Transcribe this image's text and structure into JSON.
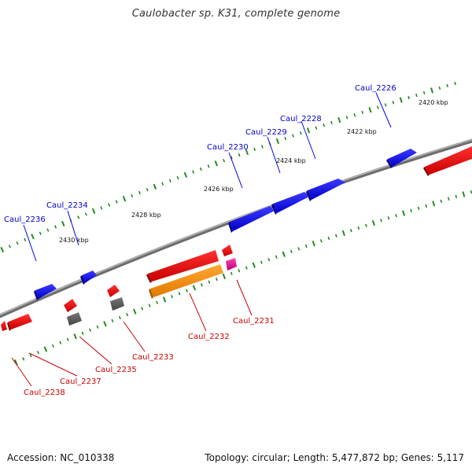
{
  "title": "Caulobacter sp. K31, complete genome",
  "footer": {
    "accession": "Accession: NC_010338",
    "summary": "Topology: circular; Length: 5,477,872 bp; Genes: 5,117"
  },
  "colors": {
    "forward_gene": "#0000ee",
    "reverse_gene": "#ee0000",
    "orange_gene": "#ff8c00",
    "grey_gene": "#555555",
    "pink_gene": "#dd1188",
    "tick": "#228b22",
    "backbone": "#808080"
  },
  "ticks": [
    {
      "label": "2420 kbp"
    },
    {
      "label": "2422 kbp"
    },
    {
      "label": "2424 kbp"
    },
    {
      "label": "2426 kbp"
    },
    {
      "label": "2428 kbp"
    },
    {
      "label": "2430 kbp"
    }
  ],
  "forward_labels": [
    {
      "label": "Caul_2226"
    },
    {
      "label": "Caul_2228"
    },
    {
      "label": "Caul_2229"
    },
    {
      "label": "Caul_2230"
    },
    {
      "label": "Caul_2234"
    },
    {
      "label": "Caul_2236"
    }
  ],
  "reverse_labels": [
    {
      "label": "Caul_2231"
    },
    {
      "label": "Caul_2232"
    },
    {
      "label": "Caul_2233"
    },
    {
      "label": "Caul_2235"
    },
    {
      "label": "Caul_2237"
    },
    {
      "label": "Caul_2238"
    }
  ]
}
